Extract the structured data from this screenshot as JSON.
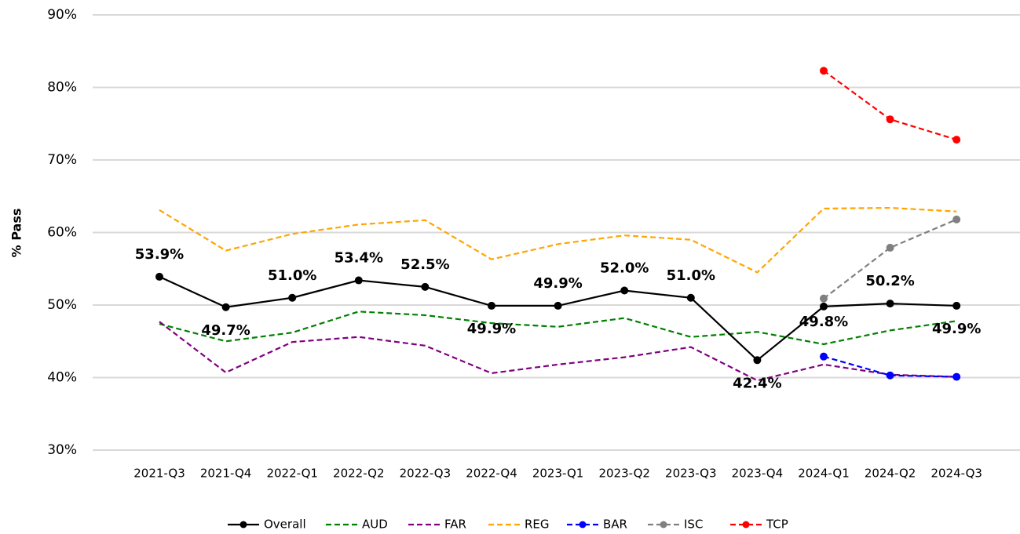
{
  "chart_data": {
    "type": "line",
    "y_label": "% Pass",
    "categories": [
      "2021-Q3",
      "2021-Q4",
      "2022-Q1",
      "2022-Q2",
      "2022-Q3",
      "2022-Q4",
      "2023-Q1",
      "2023-Q2",
      "2023-Q3",
      "2023-Q4",
      "2024-Q1",
      "2024-Q2",
      "2024-Q3"
    ],
    "ylim": [
      30,
      90
    ],
    "yticks": [
      {
        "value": 30,
        "label": "30%"
      },
      {
        "value": 40,
        "label": "40%"
      },
      {
        "value": 50,
        "label": "50%"
      },
      {
        "value": 60,
        "label": "60%"
      },
      {
        "value": 70,
        "label": "70%"
      },
      {
        "value": 80,
        "label": "80%"
      },
      {
        "value": 90,
        "label": "90%"
      }
    ],
    "grid": true,
    "legend": "bottom",
    "series": [
      {
        "name": "Overall",
        "color": "#000000",
        "style": "solid",
        "marker": true,
        "values": [
          53.9,
          49.7,
          51.0,
          53.4,
          52.5,
          49.9,
          49.9,
          52.0,
          51.0,
          42.4,
          49.8,
          50.2,
          49.9
        ],
        "value_labels": [
          "53.9%",
          "49.7%",
          "51.0%",
          "53.4%",
          "52.5%",
          "49.9%",
          "49.9%",
          "52.0%",
          "51.0%",
          "42.4%",
          "49.8%",
          "50.2%",
          "49.9%"
        ]
      },
      {
        "name": "AUD",
        "color": "#008000",
        "style": "dashed",
        "marker": false,
        "values": [
          47.4,
          45.0,
          46.2,
          49.1,
          48.6,
          47.5,
          47.0,
          48.2,
          45.6,
          46.3,
          44.6,
          46.5,
          47.8
        ]
      },
      {
        "name": "FAR",
        "color": "#800080",
        "style": "dashed",
        "marker": false,
        "values": [
          47.7,
          40.7,
          44.9,
          45.6,
          44.4,
          40.6,
          41.8,
          42.8,
          44.2,
          39.6,
          41.8,
          40.4,
          40.1
        ]
      },
      {
        "name": "REG",
        "color": "#FFA500",
        "style": "dashed",
        "marker": false,
        "values": [
          63.1,
          57.5,
          59.8,
          61.1,
          61.7,
          56.3,
          58.4,
          59.6,
          59.0,
          54.5,
          63.3,
          63.4,
          62.9
        ]
      },
      {
        "name": "BAR",
        "color": "#0000FF",
        "style": "dashed",
        "marker": true,
        "values": [
          null,
          null,
          null,
          null,
          null,
          null,
          null,
          null,
          null,
          null,
          42.9,
          40.3,
          40.1
        ]
      },
      {
        "name": "ISC",
        "color": "#808080",
        "style": "dashed",
        "marker": true,
        "values": [
          null,
          null,
          null,
          null,
          null,
          null,
          null,
          null,
          null,
          null,
          50.9,
          57.9,
          61.8
        ]
      },
      {
        "name": "TCP",
        "color": "#FF0000",
        "style": "dashed",
        "marker": true,
        "values": [
          null,
          null,
          null,
          null,
          null,
          null,
          null,
          null,
          null,
          null,
          82.3,
          75.6,
          72.8
        ]
      }
    ]
  }
}
